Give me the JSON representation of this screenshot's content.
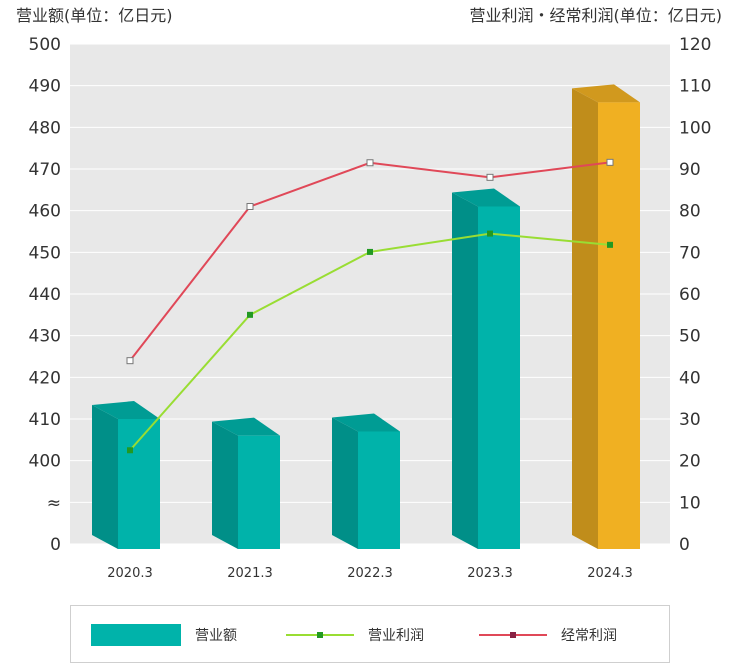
{
  "labels": {
    "left_unit": "营业额(单位：亿日元)",
    "right_unit": "营业利润・经常利润(单位：亿日元)"
  },
  "chart_data": {
    "type": "bar",
    "categories": [
      "2020.3",
      "2021.3",
      "2022.3",
      "2023.3",
      "2024.3"
    ],
    "y_left": {
      "ticks": [
        "500",
        "490",
        "480",
        "470",
        "460",
        "450",
        "440",
        "430",
        "420",
        "410",
        "400",
        "≈",
        "0"
      ],
      "range": [
        400,
        500
      ],
      "axis_break": "between 0 and 400"
    },
    "y_right": {
      "ticks": [
        "120",
        "110",
        "100",
        "90",
        "80",
        "70",
        "60",
        "50",
        "40",
        "30",
        "20",
        "10",
        "0"
      ],
      "range": [
        0,
        120
      ]
    },
    "series": [
      {
        "name": "营业额",
        "type": "bar3d",
        "axis": "left",
        "values": [
          410,
          406,
          407,
          461,
          486
        ],
        "colors": [
          "#00b3aa",
          "#00b3aa",
          "#00b3aa",
          "#00b3aa",
          "#f0b022"
        ]
      },
      {
        "name": "营业利润",
        "type": "line",
        "axis": "right",
        "values": [
          22.5,
          55,
          70.1,
          74.5,
          71.8
        ],
        "color": "#99dd33",
        "marker_color": "#229922"
      },
      {
        "name": "经常利润",
        "type": "line",
        "axis": "right",
        "values": [
          44,
          81,
          91.5,
          88,
          91.6
        ],
        "color": "#e04858",
        "marker_color": "#ffffff"
      }
    ],
    "grid": true,
    "legend_position": "bottom"
  },
  "legend": {
    "items": [
      {
        "label": "营业额",
        "kind": "bar",
        "color": "#00b3aa"
      },
      {
        "label": "营业利润",
        "kind": "line",
        "color": "#99dd33",
        "marker": "#229922"
      },
      {
        "label": "经常利润",
        "kind": "line",
        "color": "#e04858",
        "marker": "#882244"
      }
    ]
  }
}
